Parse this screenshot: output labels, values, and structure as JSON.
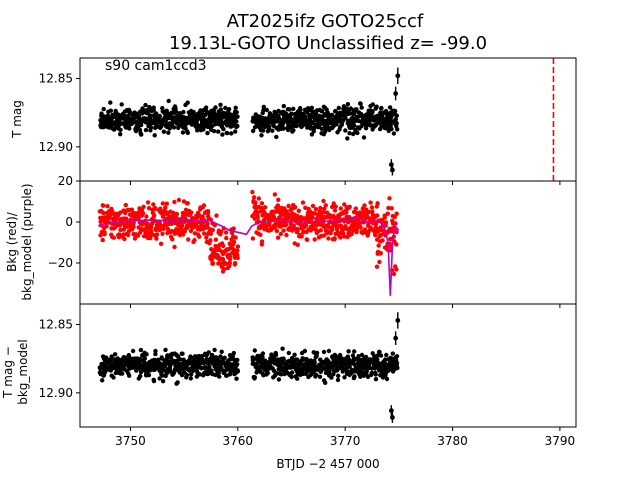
{
  "title_line1": "AT2025ifz  GOTO25ccf",
  "title_line2": "19.13L-GOTO Unclassified z= -99.0",
  "annotation": "s90 cam1ccd3",
  "xlabel": "BTJD −2 457 000",
  "colors": {
    "data": "#000000",
    "bkg": "#ff0000",
    "bkg_model": "#bf00bf",
    "marker_line": "#ff0000"
  },
  "chart_data": [
    {
      "type": "scatter",
      "panel": "top",
      "ylabel": "T mag",
      "yticks": [
        12.85,
        12.9
      ],
      "ytick_labels": [
        "12.85",
        "12.90"
      ],
      "ylim": [
        12.925,
        12.835
      ],
      "y_inverted": true,
      "xlim": [
        3745.3,
        3791.5
      ],
      "xticks": [
        3750,
        3760,
        3770,
        3780,
        3790
      ],
      "show_xtick_labels": false,
      "vline_x": 3789.4,
      "series": [
        {
          "segment_x": [
            3747.2,
            3760.0
          ],
          "y_center": 12.88,
          "y_spread": 0.0085
        },
        {
          "segment_x": [
            3761.4,
            3774.9
          ],
          "y_center": 12.88,
          "y_spread": 0.0085
        }
      ],
      "outliers": [
        {
          "x": 3774.3,
          "y": 12.913,
          "err": 0.004
        },
        {
          "x": 3774.4,
          "y": 12.917,
          "err": 0.004
        },
        {
          "x": 3774.7,
          "y": 12.861,
          "err": 0.005
        },
        {
          "x": 3774.9,
          "y": 12.848,
          "err": 0.006
        }
      ]
    },
    {
      "type": "scatter",
      "panel": "middle",
      "ylabel_line1": "Bkg (red)/",
      "ylabel_line2": "bkg_model (purple)",
      "yticks": [
        20,
        0,
        -20
      ],
      "ytick_labels": [
        "20",
        "0",
        "−20"
      ],
      "ylim": [
        -40,
        20
      ],
      "xlim": [
        3745.3,
        3791.5
      ],
      "xticks": [
        3750,
        3760,
        3770,
        3780,
        3790
      ],
      "show_xtick_labels": false,
      "bkg_model_curve": {
        "x": [
          3747.0,
          3748.0,
          3750.0,
          3752.0,
          3754.0,
          3756.0,
          3757.5,
          3758.5,
          3759.2,
          3760.0,
          3760.8,
          3761.3,
          3762.0,
          3764.0,
          3766.0,
          3768.0,
          3770.0,
          3771.0,
          3772.0,
          3773.0,
          3773.6,
          3774.0,
          3774.2,
          3774.4,
          3774.6,
          3775.0
        ],
        "y": [
          -2.0,
          -0.5,
          0.5,
          1.0,
          0.5,
          1.0,
          0.5,
          -2.0,
          -4.0,
          -5.0,
          -6.0,
          -2.0,
          0.0,
          0.5,
          0.0,
          0.5,
          0.5,
          2.5,
          0.0,
          0.5,
          -1.5,
          -10.0,
          -36.0,
          -12.0,
          -2.0,
          -4.0
        ]
      },
      "bkg_points": [
        {
          "segment_x": [
            3747.2,
            3757.5
          ],
          "y_center": 0.0,
          "y_spread": 8.0
        },
        {
          "segment_x": [
            3757.5,
            3760.0
          ],
          "y_center": -13.0,
          "y_spread": 10.0
        },
        {
          "segment_x": [
            3761.4,
            3762.0
          ],
          "y_center": 5.0,
          "y_spread": 12.0
        },
        {
          "segment_x": [
            3762.0,
            3773.0
          ],
          "y_center": 0.0,
          "y_spread": 8.0
        },
        {
          "segment_x": [
            3773.0,
            3774.9
          ],
          "y_center": -6.0,
          "y_spread": 14.0
        }
      ]
    },
    {
      "type": "scatter",
      "panel": "bottom",
      "ylabel_line1": "T mag −",
      "ylabel_line2": "bkg_model",
      "yticks": [
        12.85,
        12.9
      ],
      "ytick_labels": [
        "12.85",
        "12.90"
      ],
      "ylim": [
        12.925,
        12.835
      ],
      "y_inverted": true,
      "xlim": [
        3745.3,
        3791.5
      ],
      "xticks": [
        3750,
        3760,
        3770,
        3780,
        3790
      ],
      "xtick_labels": [
        "3750",
        "3760",
        "3770",
        "3780",
        "3790"
      ],
      "show_xtick_labels": true,
      "series": [
        {
          "segment_x": [
            3747.2,
            3760.0
          ],
          "y_center": 12.88,
          "y_spread": 0.0085
        },
        {
          "segment_x": [
            3761.4,
            3774.9
          ],
          "y_center": 12.88,
          "y_spread": 0.0085
        }
      ],
      "outliers": [
        {
          "x": 3774.3,
          "y": 12.913,
          "err": 0.004
        },
        {
          "x": 3774.4,
          "y": 12.918,
          "err": 0.004
        },
        {
          "x": 3774.7,
          "y": 12.86,
          "err": 0.005
        },
        {
          "x": 3774.9,
          "y": 12.847,
          "err": 0.006
        }
      ]
    }
  ]
}
